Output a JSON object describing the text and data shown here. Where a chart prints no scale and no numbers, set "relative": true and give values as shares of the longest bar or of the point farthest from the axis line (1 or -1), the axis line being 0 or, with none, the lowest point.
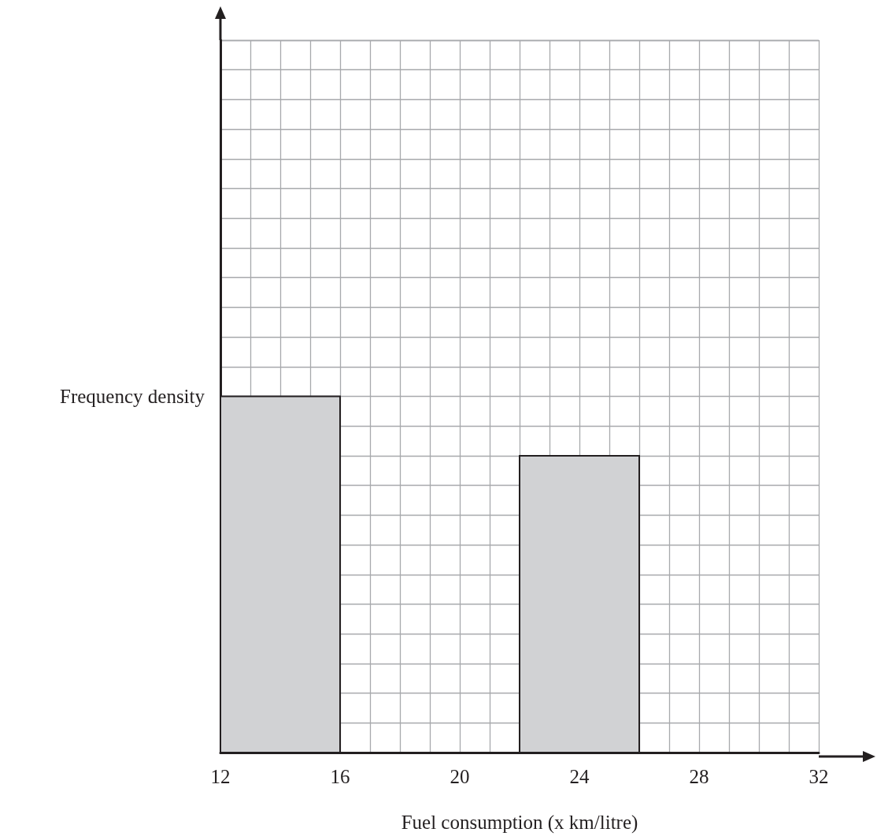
{
  "chart_data": {
    "type": "bar",
    "xlabel": "Fuel consumption (x km/litre)",
    "ylabel": "Frequency density",
    "x": [
      14,
      24
    ],
    "values": [
      1,
      0.8333
    ],
    "relative": true,
    "color": "#d1d2d4",
    "xlim": [
      12,
      32
    ],
    "xticks": [
      12,
      16,
      20,
      24,
      28,
      32
    ],
    "grid": true
  }
}
